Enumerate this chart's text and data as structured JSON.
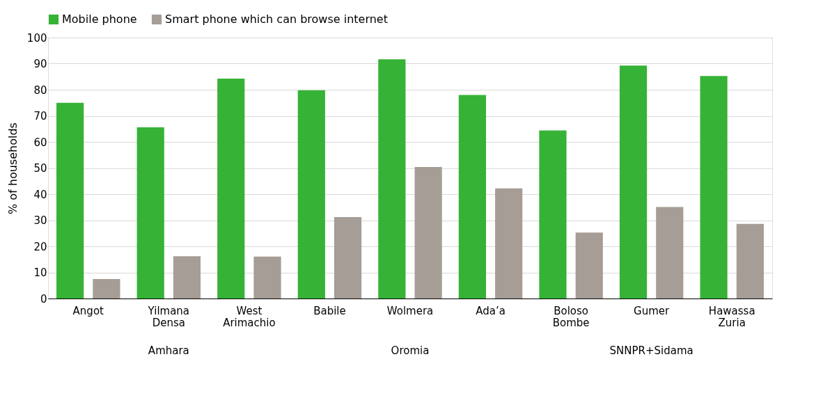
{
  "chart_data": {
    "type": "bar",
    "ylabel": "% of households",
    "categories": [
      "Angot",
      "Yilmana Densa",
      "West Arimachio",
      "Babile",
      "Wolmera",
      "Ada’a",
      "Boloso Bombe",
      "Gumer",
      "Hawassa Zuria"
    ],
    "series": [
      {
        "name": "Mobile phone",
        "color": "#36b236",
        "values": [
          75.0,
          65.6,
          84.3,
          79.8,
          91.7,
          78.0,
          64.4,
          89.3,
          85.3
        ]
      },
      {
        "name": "Smart phone which can browse internet",
        "color": "#a59d96",
        "values": [
          7.5,
          16.2,
          16.1,
          31.2,
          50.4,
          42.2,
          25.3,
          35.1,
          28.6
        ]
      }
    ],
    "ylim": [
      0,
      100
    ],
    "yticks": [
      0,
      10,
      20,
      30,
      40,
      50,
      60,
      70,
      80,
      90,
      100
    ],
    "grid": "y",
    "legend": "top",
    "annotations": [
      "Amhara",
      "Oromia",
      "SNNPR+Sidama"
    ]
  }
}
